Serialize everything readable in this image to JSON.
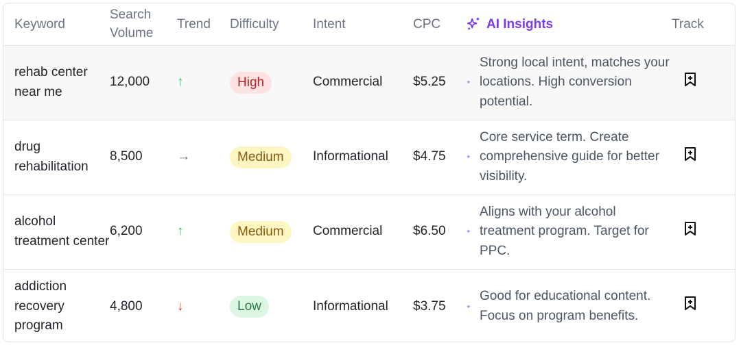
{
  "header": {
    "keyword": "Keyword",
    "search_volume": "Search Volume",
    "trend": "Trend",
    "difficulty": "Difficulty",
    "intent": "Intent",
    "cpc": "CPC",
    "ai_insights": "AI Insights",
    "track": "Track"
  },
  "colors": {
    "accent": "#7c3aed",
    "high": "#b42323",
    "medium": "#8a5a10",
    "low": "#237a44",
    "trend_up": "#22c55e",
    "trend_down": "#c2410c"
  },
  "rows": [
    {
      "keyword": "rehab center near me",
      "volume": "12,000",
      "trend": "↑",
      "trend_dir": "up",
      "difficulty": "High",
      "intent": "Commercial",
      "cpc": "$5.25",
      "insight": "Strong local intent, matches your locations. High conversion potential."
    },
    {
      "keyword": "drug rehabilitation",
      "volume": "8,500",
      "trend": "→",
      "trend_dir": "flat",
      "difficulty": "Medium",
      "intent": "Informational",
      "cpc": "$4.75",
      "insight": "Core service term. Create comprehensive guide for better visibility."
    },
    {
      "keyword": "alcohol treatment center",
      "volume": "6,200",
      "trend": "↑",
      "trend_dir": "up",
      "difficulty": "Medium",
      "intent": "Commercial",
      "cpc": "$6.50",
      "insight": "Aligns with your alcohol treatment program. Target for PPC."
    },
    {
      "keyword": "addiction recovery program",
      "volume": "4,800",
      "trend": "↓",
      "trend_dir": "down",
      "difficulty": "Low",
      "intent": "Informational",
      "cpc": "$3.75",
      "insight": "Good for educational content. Focus on program benefits."
    }
  ]
}
